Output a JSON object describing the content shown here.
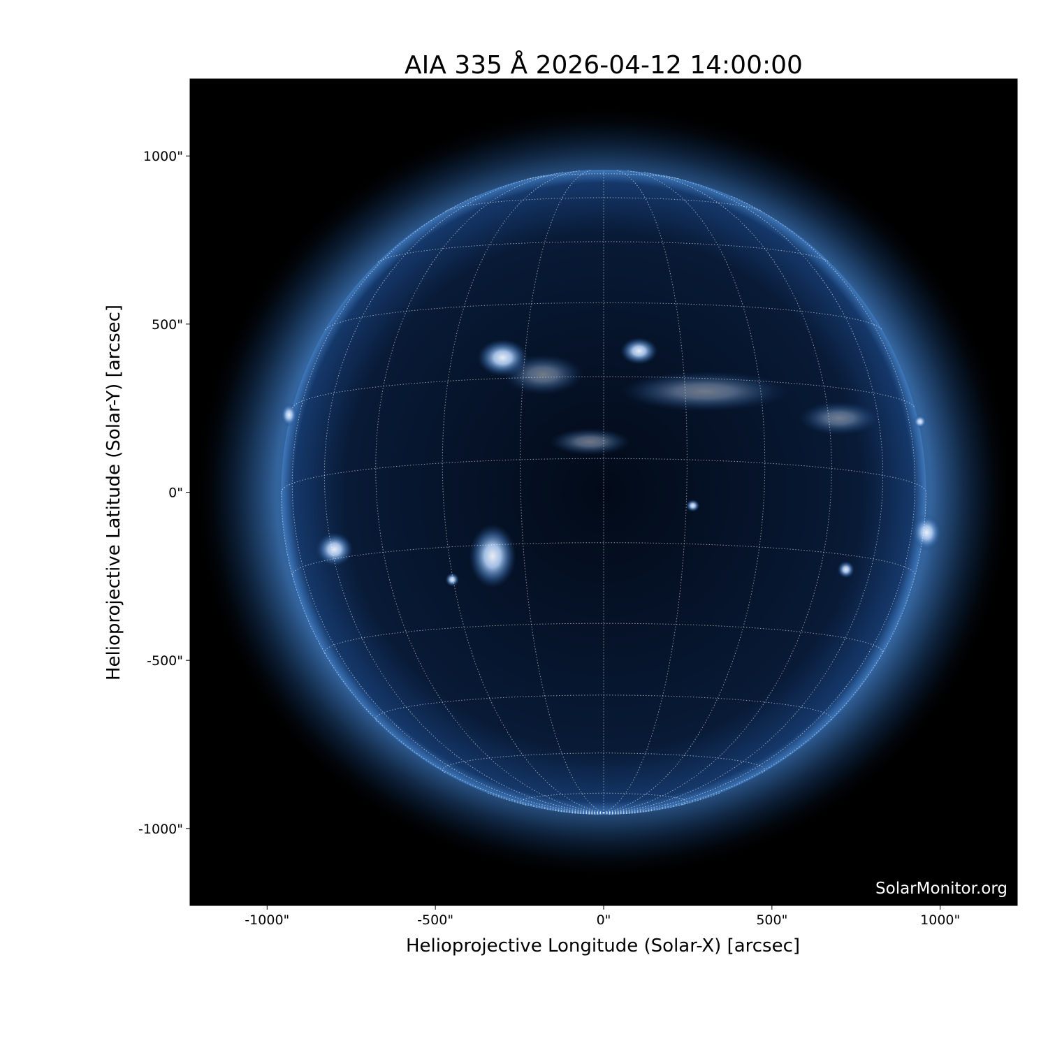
{
  "chart_data": {
    "type": "image",
    "title": "AIA 335 Å 2026-04-12 14:00:00",
    "xlabel": "Helioprojective Longitude (Solar-X) [arcsec]",
    "ylabel": "Helioprojective Latitude (Solar-Y) [arcsec]",
    "xlim": [
      -1229,
      1229
    ],
    "ylim": [
      -1229,
      1229
    ],
    "xticks": [
      -1000,
      -500,
      0,
      500,
      1000
    ],
    "yticks": [
      -1000,
      -500,
      0,
      500,
      1000
    ],
    "xtick_labels": [
      "-1000\"",
      "-500\"",
      "0\"",
      "500\"",
      "1000\""
    ],
    "ytick_labels": [
      "-1000\"",
      "-500\"",
      "0\"",
      "500\"",
      "1000\""
    ],
    "solar_radius_arcsec": 958,
    "grid_spacing_deg": 15,
    "colormap": "sdoaia335",
    "colors": {
      "background": "#000000",
      "disk": "#0a1a33",
      "corona": "#2b5d9a",
      "bright": "#e8f0ff",
      "grid": "#ffffff"
    },
    "watermark": "SolarMonitor.org"
  }
}
